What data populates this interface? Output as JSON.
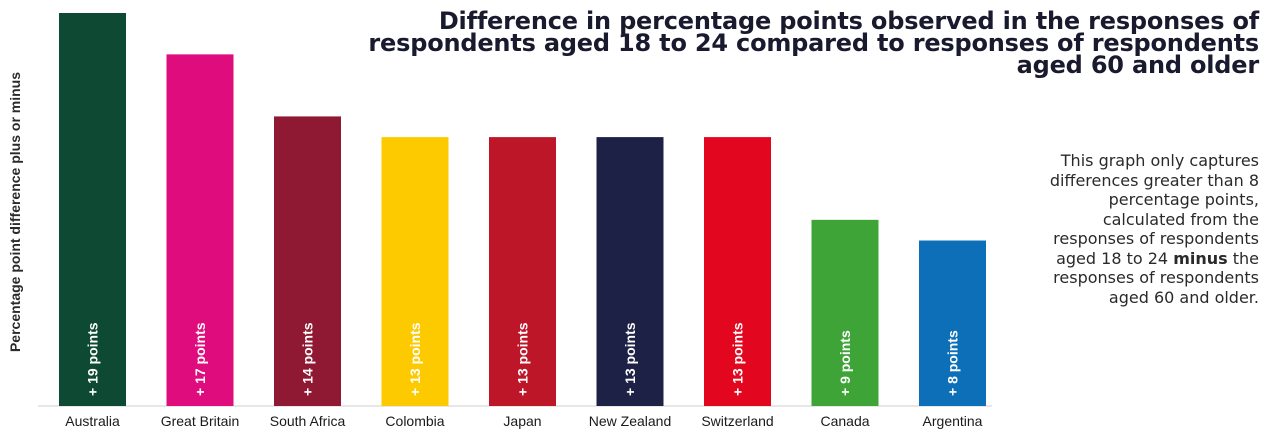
{
  "chart_data": {
    "type": "bar",
    "title": "Difference in percentage points observed in the responses of respondents aged 18 to 24 compared to responses of respondents aged 60 and older",
    "ylabel": "Percentage point  difference plus or minus",
    "xlabel": "",
    "categories": [
      "Australia",
      "Great Britain",
      "South Africa",
      "Colombia",
      "Japan",
      "New Zealand",
      "Switzerland",
      "Canada",
      "Argentina"
    ],
    "values": [
      19,
      17,
      14,
      13,
      13,
      13,
      13,
      9,
      8
    ],
    "data_labels": [
      "+ 19 points",
      "+ 17 points",
      "+ 14 points",
      "+ 13 points",
      "+ 13 points",
      "+ 13 points",
      "+ 13 points",
      "+ 9 points",
      "+ 8 points"
    ],
    "colors": [
      "#0e4a33",
      "#df0c7e",
      "#8f1932",
      "#fdca00",
      "#bd1628",
      "#1d2146",
      "#e2061f",
      "#3ea437",
      "#0c6fb8"
    ],
    "ylim": [
      0,
      19
    ],
    "grid": false,
    "legend": "none"
  },
  "note": {
    "before": "This graph only captures differences greater than 8 percentage points, calculated from the responses of respondents aged 18 to 24 ",
    "bold": "minus",
    "after": " the responses of respondents aged 60 and older."
  }
}
